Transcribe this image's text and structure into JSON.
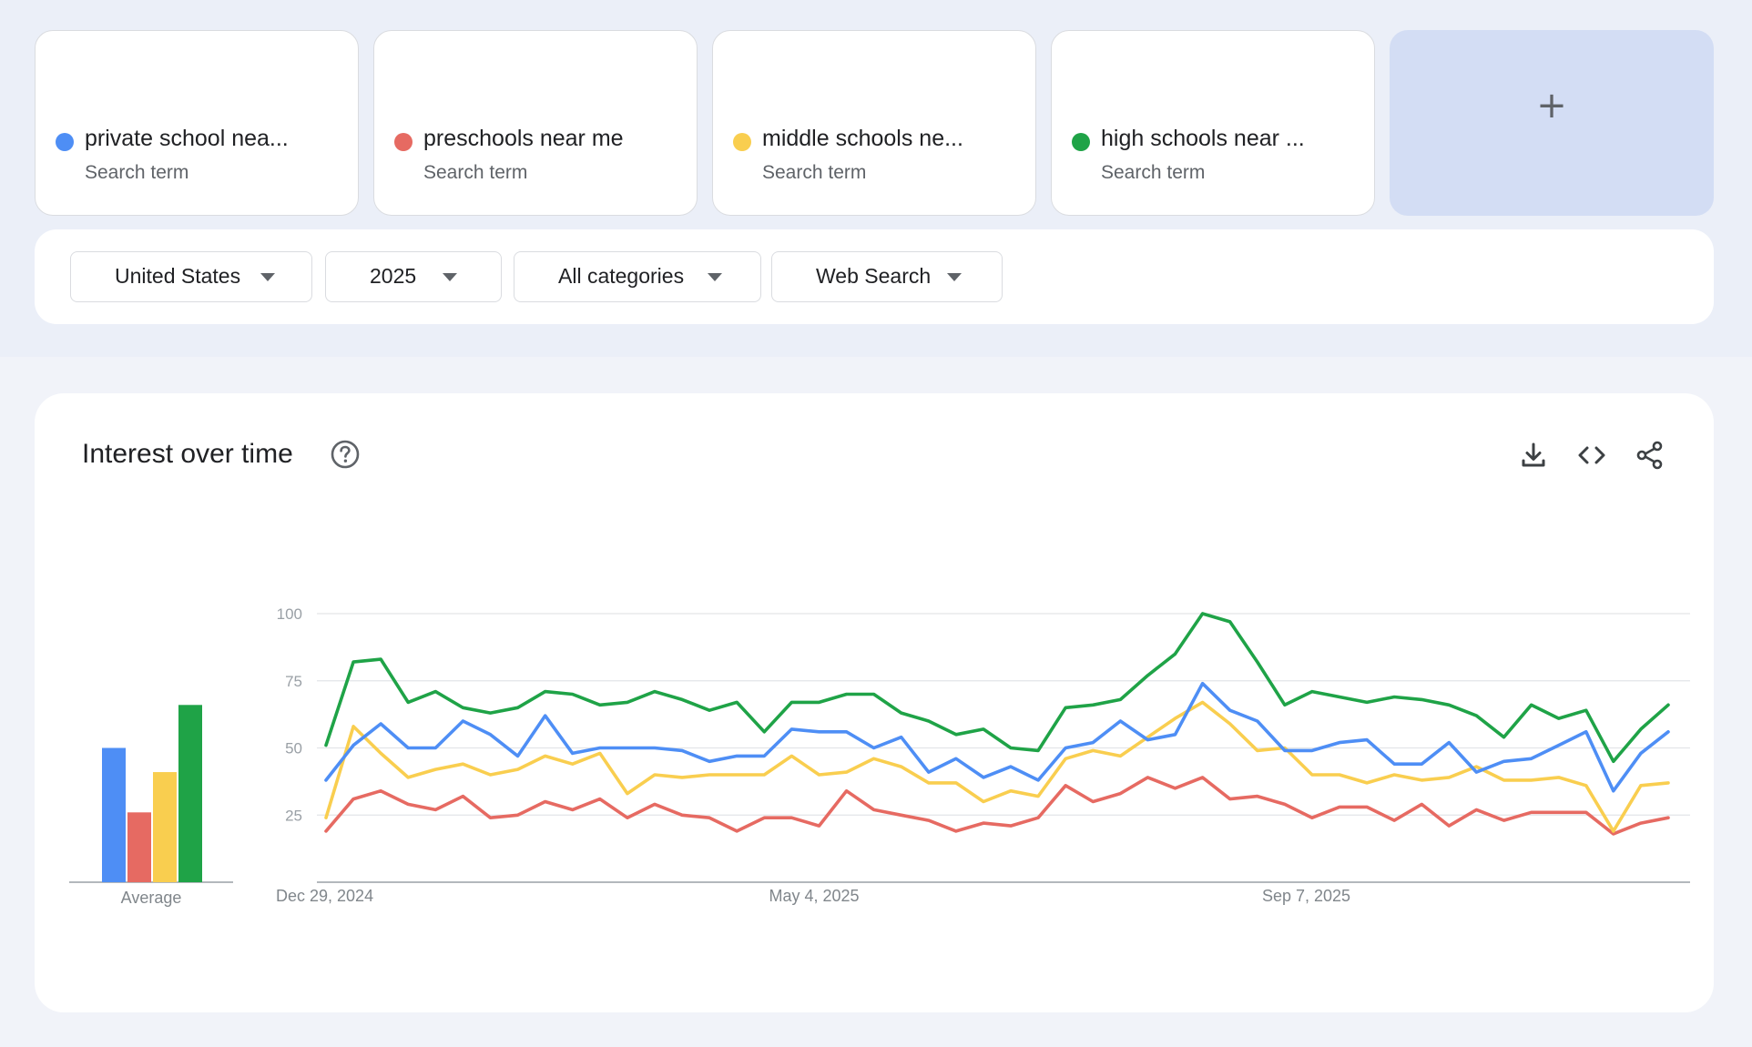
{
  "search_terms": [
    {
      "label": "private school nea...",
      "sub": "Search term",
      "color": "#4e8ef5"
    },
    {
      "label": "preschools near me",
      "sub": "Search term",
      "color": "#e66a62"
    },
    {
      "label": "middle schools ne...",
      "sub": "Search term",
      "color": "#f9ce4f"
    },
    {
      "label": "high schools near ...",
      "sub": "Search term",
      "color": "#1fa347"
    }
  ],
  "add_term": {
    "icon": "plus-icon",
    "label": "+"
  },
  "filters": {
    "region": "United States",
    "period": "2025",
    "category": "All categories",
    "search_type": "Web Search"
  },
  "chart_section": {
    "title": "Interest over time",
    "icons": [
      "help-icon",
      "download-icon",
      "embed-code-icon",
      "share-icon"
    ]
  },
  "chart_data": {
    "type": "line",
    "title": "Interest over time",
    "ylim": [
      0,
      100
    ],
    "yticks": [
      25,
      50,
      75,
      100
    ],
    "grid": true,
    "x_tick_labels": [
      "Dec 29, 2024",
      "May 4, 2025",
      "Sep 7, 2025"
    ],
    "x_tick_index": [
      0,
      18,
      36
    ],
    "series": [
      {
        "name": "private school nea...",
        "color": "#4e8ef5",
        "values": [
          38,
          51,
          59,
          50,
          50,
          60,
          55,
          47,
          62,
          48,
          50,
          50,
          50,
          49,
          45,
          47,
          47,
          57,
          56,
          56,
          50,
          54,
          41,
          46,
          39,
          43,
          38,
          50,
          52,
          60,
          53,
          55,
          74,
          64,
          60,
          49,
          49,
          52,
          53,
          44,
          44,
          52,
          41,
          45,
          46,
          51,
          56,
          34,
          48,
          56
        ]
      },
      {
        "name": "preschools near me",
        "color": "#e66a62",
        "values": [
          19,
          31,
          34,
          29,
          27,
          32,
          24,
          25,
          30,
          27,
          31,
          24,
          29,
          25,
          24,
          19,
          24,
          24,
          21,
          34,
          27,
          25,
          23,
          19,
          22,
          21,
          24,
          36,
          30,
          33,
          39,
          35,
          39,
          31,
          32,
          29,
          24,
          28,
          28,
          23,
          29,
          21,
          27,
          23,
          26,
          26,
          26,
          18,
          22,
          24
        ]
      },
      {
        "name": "middle schools ne...",
        "color": "#f9ce4f",
        "values": [
          24,
          58,
          48,
          39,
          42,
          44,
          40,
          42,
          47,
          44,
          48,
          33,
          40,
          39,
          40,
          40,
          40,
          47,
          40,
          41,
          46,
          43,
          37,
          37,
          30,
          34,
          32,
          46,
          49,
          47,
          54,
          61,
          67,
          59,
          49,
          50,
          40,
          40,
          37,
          40,
          38,
          39,
          43,
          38,
          38,
          39,
          36,
          19,
          36,
          37
        ]
      },
      {
        "name": "high schools near ...",
        "color": "#1fa347",
        "values": [
          51,
          82,
          83,
          67,
          71,
          65,
          63,
          65,
          71,
          70,
          66,
          67,
          71,
          68,
          64,
          67,
          56,
          67,
          67,
          70,
          70,
          63,
          60,
          55,
          57,
          50,
          49,
          65,
          66,
          68,
          77,
          85,
          100,
          97,
          82,
          66,
          71,
          69,
          67,
          69,
          68,
          66,
          62,
          54,
          66,
          61,
          64,
          45,
          57,
          66
        ]
      }
    ],
    "average": {
      "label": "Average",
      "values": [
        50,
        26,
        41,
        66
      ]
    }
  }
}
